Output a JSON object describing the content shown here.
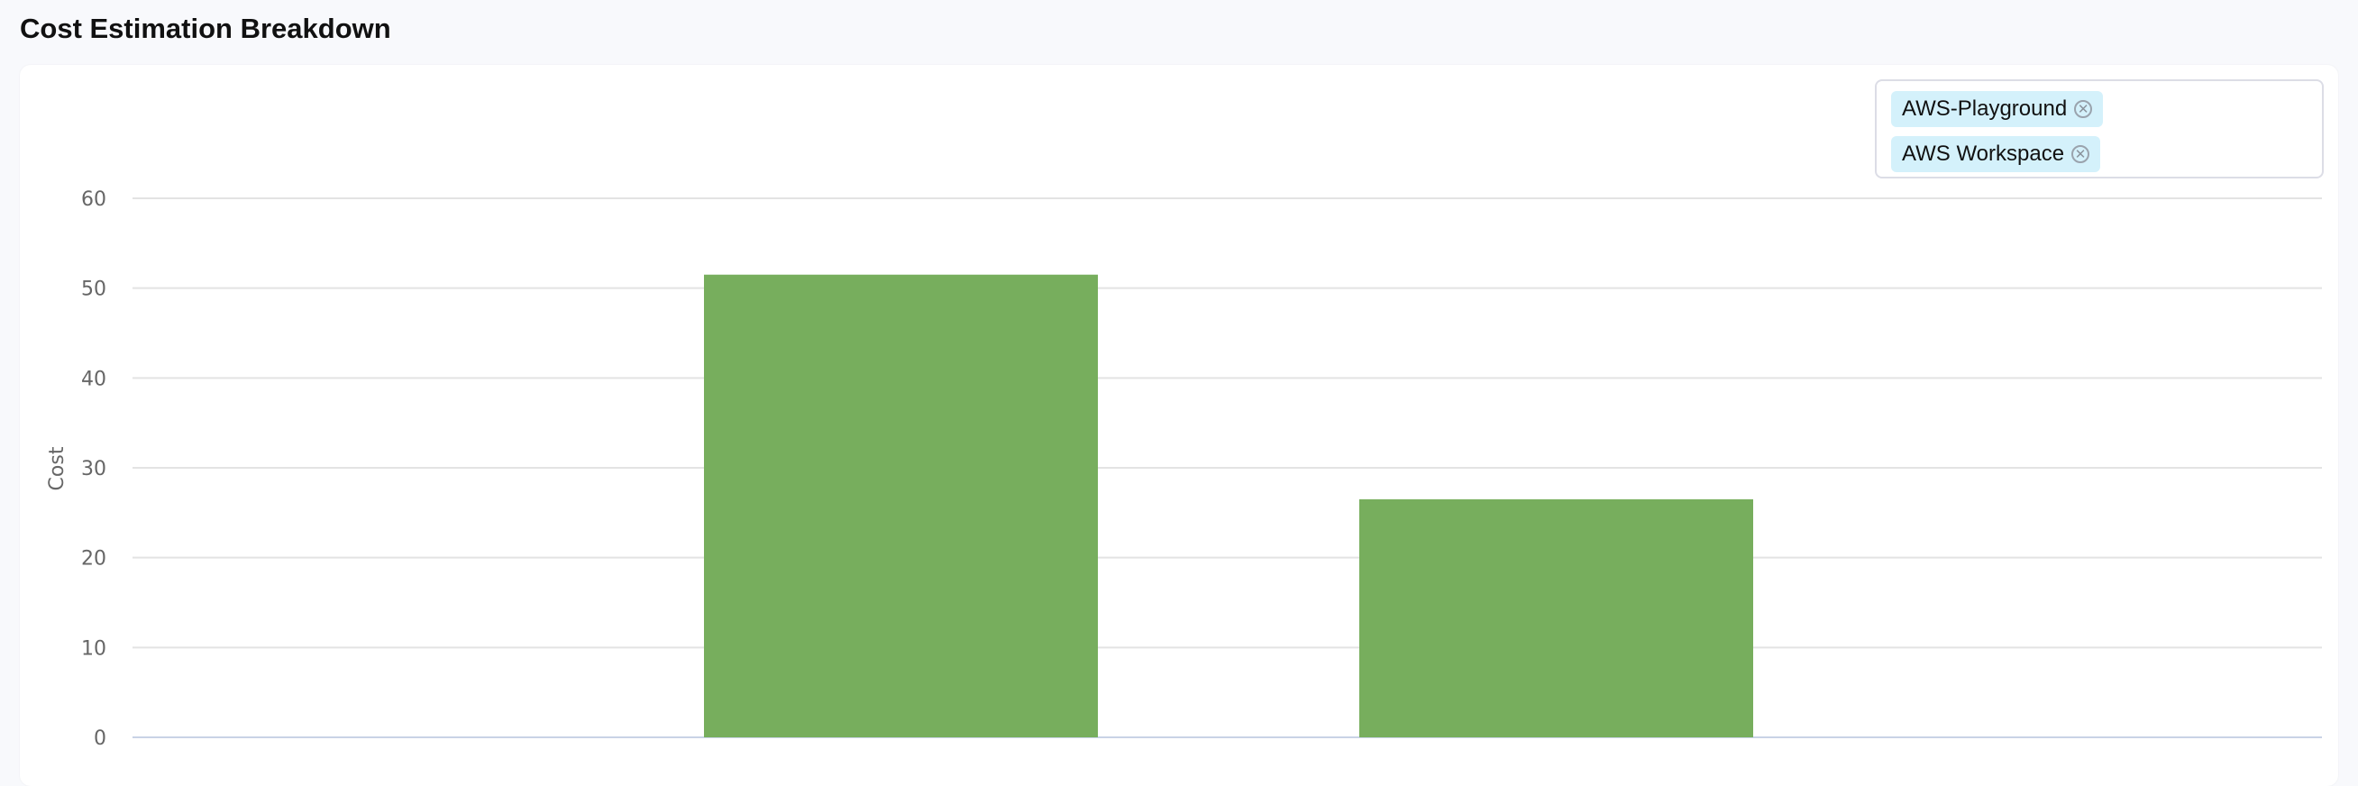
{
  "title": "Cost Estimation Breakdown",
  "filter": {
    "chips": [
      {
        "label": "AWS-Playground",
        "remove_icon": "close-circle-icon"
      },
      {
        "label": "AWS Workspace",
        "remove_icon": "close-circle-icon"
      }
    ]
  },
  "chart_data": {
    "type": "bar",
    "title": "",
    "xlabel": "",
    "ylabel": "Cost",
    "ylim": [
      0,
      60
    ],
    "yticks": [
      "0",
      "10",
      "20",
      "30",
      "40",
      "50",
      "60"
    ],
    "values": [
      51.5,
      26.5
    ],
    "grid": true,
    "bar_color": "#77ae5d"
  }
}
